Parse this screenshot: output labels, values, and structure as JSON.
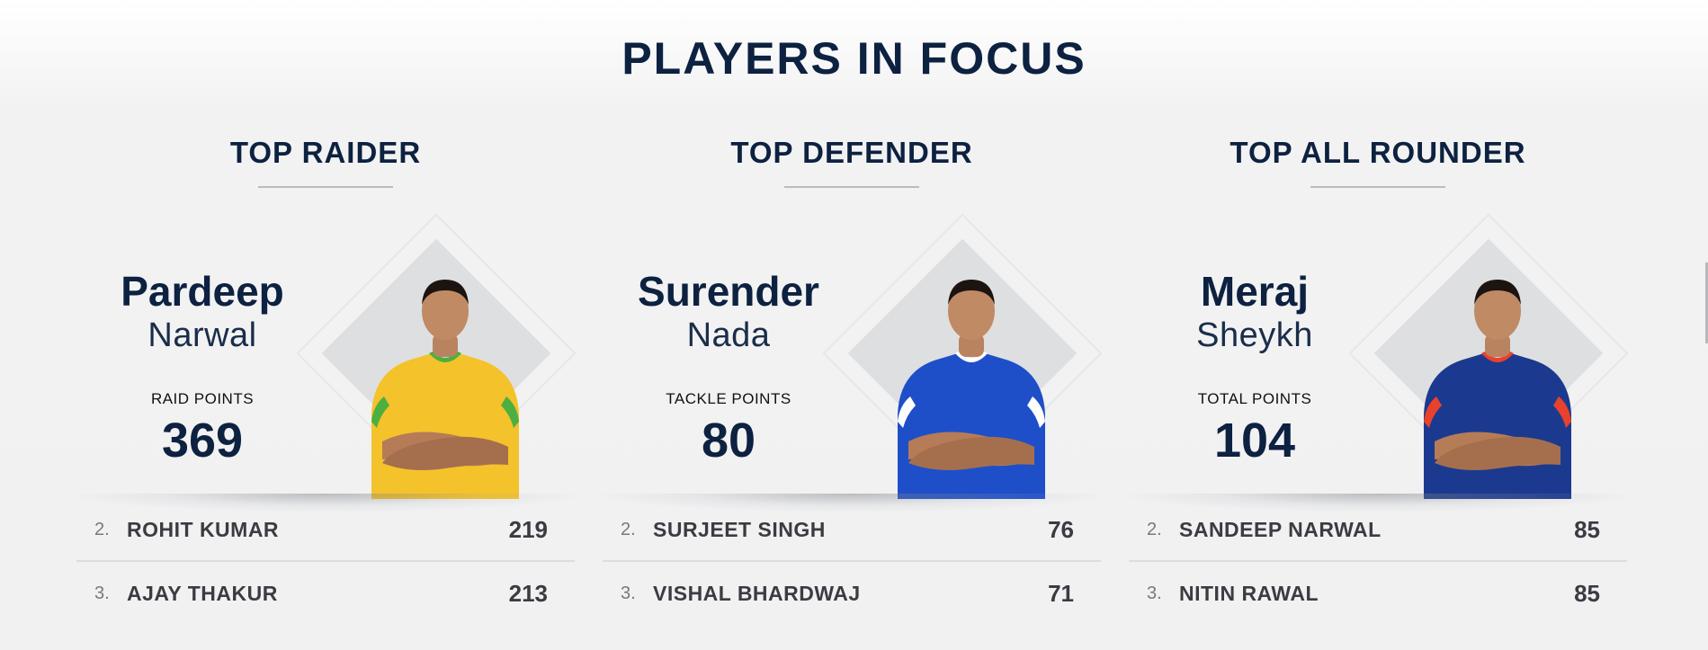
{
  "page": {
    "title": "PLAYERS IN FOCUS"
  },
  "columns": [
    {
      "title": "TOP RAIDER",
      "leader": {
        "first_name": "Pardeep",
        "last_name": "Narwal",
        "stat_label": "RAID POINTS",
        "stat_value": "369",
        "jersey_color": "#f4c22b",
        "jersey_accent": "#4caf3f"
      },
      "ranks": [
        {
          "rank": "2.",
          "name": "ROHIT KUMAR",
          "value": "219"
        },
        {
          "rank": "3.",
          "name": "AJAY THAKUR",
          "value": "213"
        }
      ]
    },
    {
      "title": "TOP DEFENDER",
      "leader": {
        "first_name": "Surender",
        "last_name": "Nada",
        "stat_label": "TACKLE POINTS",
        "stat_value": "80",
        "jersey_color": "#1e4fc9",
        "jersey_accent": "#ffffff"
      },
      "ranks": [
        {
          "rank": "2.",
          "name": "SURJEET SINGH",
          "value": "76"
        },
        {
          "rank": "3.",
          "name": "VISHAL BHARDWAJ",
          "value": "71"
        }
      ]
    },
    {
      "title": "TOP ALL ROUNDER",
      "leader": {
        "first_name": "Meraj",
        "last_name": "Sheykh",
        "stat_label": "TOTAL POINTS",
        "stat_value": "104",
        "jersey_color": "#1b3a8f",
        "jersey_accent": "#e8412c"
      },
      "ranks": [
        {
          "rank": "2.",
          "name": "SANDEEP NARWAL",
          "value": "85"
        },
        {
          "rank": "3.",
          "name": "NITIN RAWAL",
          "value": "85"
        }
      ]
    }
  ]
}
